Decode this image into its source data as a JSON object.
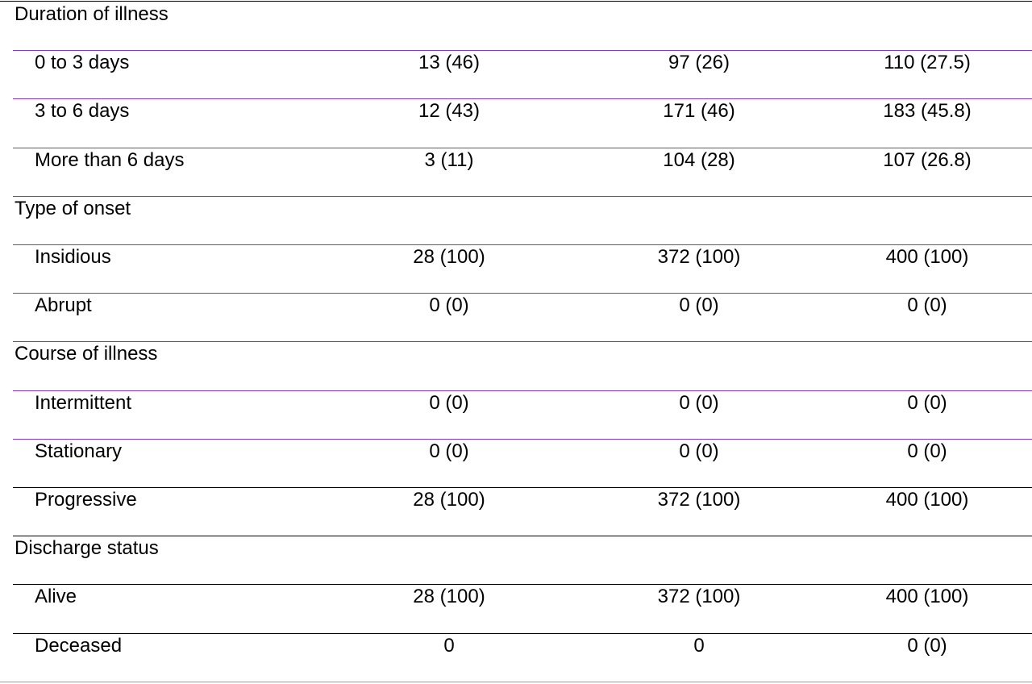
{
  "table": {
    "rows": [
      [
        "Duration of illness"
      ],
      [
        "0 to 3 days",
        "13 (46)",
        "97 (26)",
        "110 (27.5)"
      ],
      [
        "3 to 6 days",
        "12 (43)",
        "171 (46)",
        "183 (45.8)"
      ],
      [
        "More than 6 days",
        "3 (11)",
        "104 (28)",
        "107 (26.8)"
      ],
      [
        "Type of onset"
      ],
      [
        "Insidious",
        "28 (100)",
        "372 (100)",
        "400 (100)"
      ],
      [
        "Abrupt",
        "0 (0)",
        "0 (0)",
        "0 (0)"
      ],
      [
        "Course of illness"
      ],
      [
        "Intermittent",
        "0 (0)",
        "0 (0)",
        "0 (0)"
      ],
      [
        "Stationary",
        "0 (0)",
        "0 (0)",
        "0 (0)"
      ],
      [
        "Progressive",
        "28 (100)",
        "372 (100)",
        "400 (100)"
      ],
      [
        "Discharge status"
      ],
      [
        "Alive",
        "28 (100)",
        "372 (100)",
        "400 (100)"
      ],
      [
        "Deceased",
        "0",
        "0",
        "0 (0)"
      ]
    ]
  }
}
